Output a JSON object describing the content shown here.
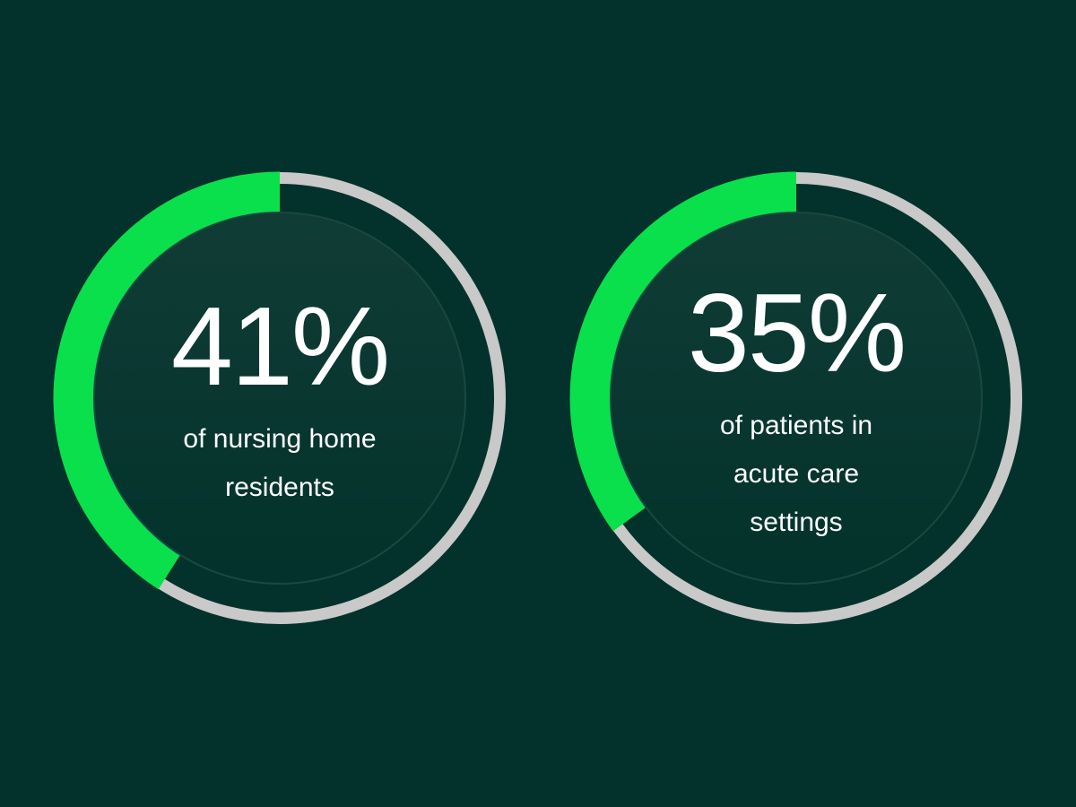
{
  "chart_data": [
    {
      "type": "pie",
      "value_percent": 41,
      "value_label": "41%",
      "label": "of nursing home residents",
      "label_lines": [
        "of nursing home",
        "residents"
      ]
    },
    {
      "type": "pie",
      "value_percent": 35,
      "value_label": "35%",
      "label": "of patients in acute care settings",
      "label_lines": [
        "of patients in",
        "acute care",
        "settings"
      ]
    }
  ],
  "colors": {
    "background": "#02322b",
    "accent": "#0adf4c",
    "track": "#c9c9c9",
    "inner": "#0f3a33"
  }
}
